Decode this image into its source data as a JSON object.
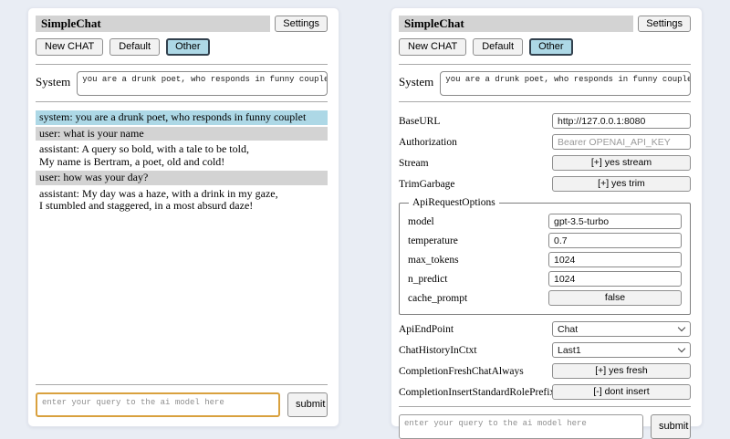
{
  "colors": {
    "page_bg": "#e9edf4",
    "header_bar_bg": "#d3d3d3",
    "selected_tab_bg": "#add8e6",
    "system_msg_bg": "#add8e6",
    "user_msg_bg": "#d3d3d3",
    "focus_border": "#d9a13e"
  },
  "left_panel": {
    "title": "SimpleChat",
    "settings_button_label": "Settings",
    "tabs": [
      {
        "label": "New CHAT",
        "selected": false
      },
      {
        "label": "Default",
        "selected": false
      },
      {
        "label": "Other",
        "selected": true
      }
    ],
    "system": {
      "label": "System",
      "value": "you are a drunk poet, who responds in funny couplet"
    },
    "messages": [
      {
        "role": "system",
        "text": "system: you are a drunk poet, who responds in funny couplet"
      },
      {
        "role": "user",
        "text": "user: what is your name"
      },
      {
        "role": "assistant",
        "text": "assistant: A query so bold, with a tale to be told,\nMy name is Bertram, a poet, old and cold!"
      },
      {
        "role": "user",
        "text": "user: how was your day?"
      },
      {
        "role": "assistant",
        "text": "assistant: My day was a haze, with a drink in my gaze,\nI stumbled and staggered, in a most absurd daze!"
      }
    ],
    "query": {
      "placeholder": "enter your query to the ai model here",
      "submit_label": "submit"
    }
  },
  "right_panel": {
    "title": "SimpleChat",
    "settings_button_label": "Settings",
    "tabs": [
      {
        "label": "New CHAT",
        "selected": false
      },
      {
        "label": "Default",
        "selected": false
      },
      {
        "label": "Other",
        "selected": true
      }
    ],
    "system": {
      "label": "System",
      "value": "you are a drunk poet, who responds in funny couplet"
    },
    "settings": {
      "baseurl": {
        "label": "BaseURL",
        "value": "http://127.0.0.1:8080"
      },
      "authorization": {
        "label": "Authorization",
        "value": "",
        "placeholder": "Bearer OPENAI_API_KEY"
      },
      "stream": {
        "label": "Stream",
        "button": "[+] yes stream"
      },
      "trimgarbage": {
        "label": "TrimGarbage",
        "button": "[+] yes trim"
      },
      "api_request_options": {
        "legend": "ApiRequestOptions",
        "model": {
          "label": "model",
          "value": "gpt-3.5-turbo"
        },
        "temperature": {
          "label": "temperature",
          "value": "0.7"
        },
        "max_tokens": {
          "label": "max_tokens",
          "value": "1024"
        },
        "n_predict": {
          "label": "n_predict",
          "value": "1024"
        },
        "cache_prompt": {
          "label": "cache_prompt",
          "button": "false"
        }
      },
      "apiendpoint": {
        "label": "ApiEndPoint",
        "value": "Chat"
      },
      "chathistoryinctxt": {
        "label": "ChatHistoryInCtxt",
        "value": "Last1"
      },
      "completionfreshchatalways": {
        "label": "CompletionFreshChatAlways",
        "button": "[+] yes fresh"
      },
      "completioninsertstandardroleprefix": {
        "label": "CompletionInsertStandardRolePrefix",
        "button": "[-] dont insert"
      }
    },
    "query": {
      "placeholder": "enter your query to the ai model here",
      "submit_label": "submit"
    }
  }
}
